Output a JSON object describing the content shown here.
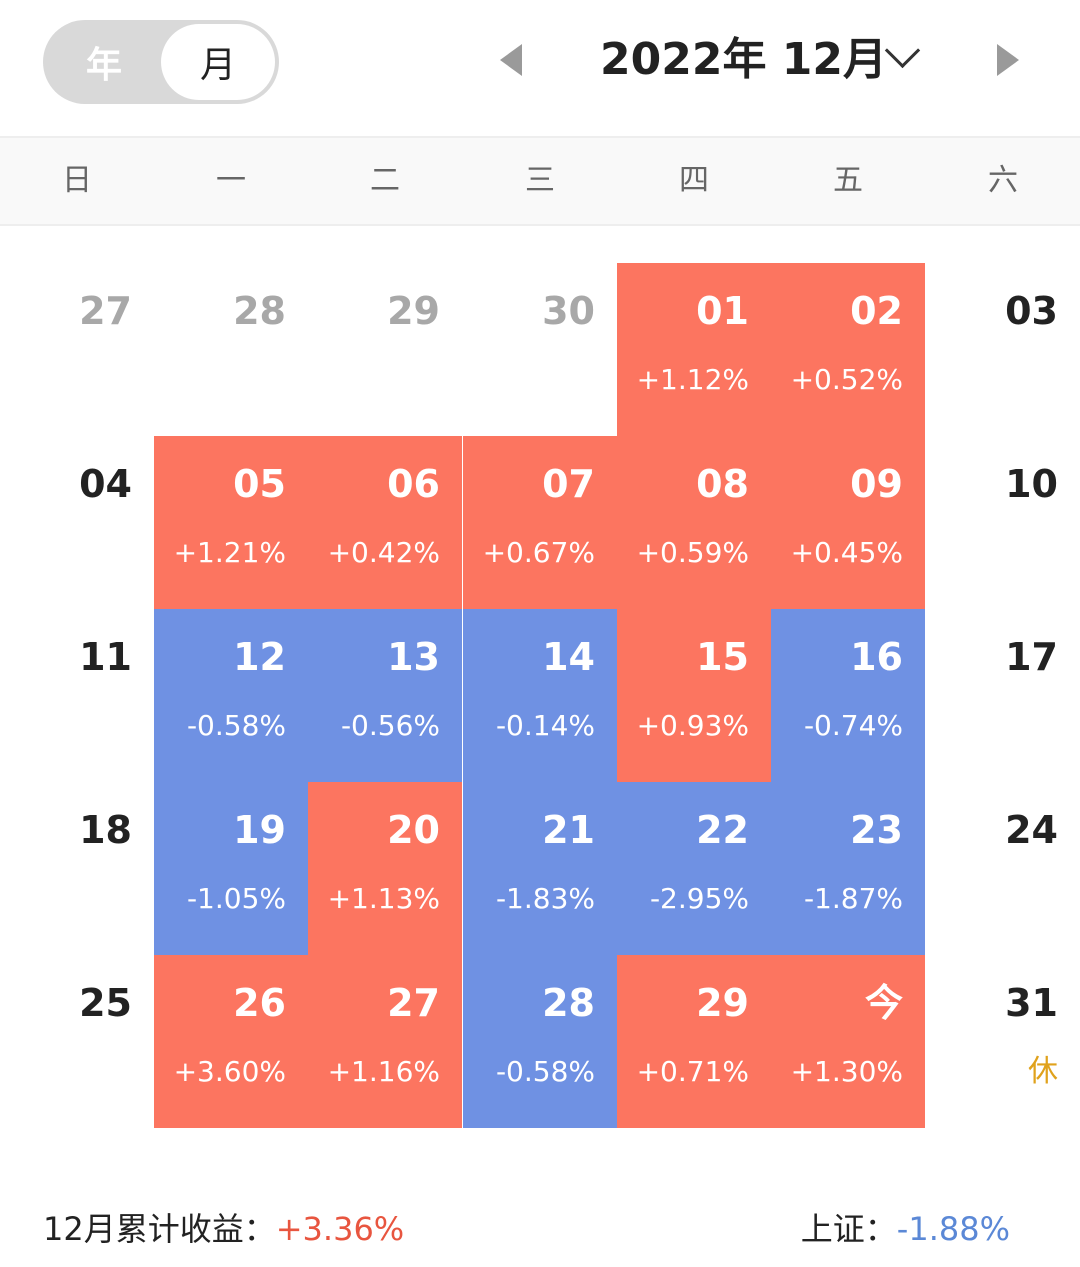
{
  "header": {
    "toggle": {
      "year_label": "年",
      "month_label": "月",
      "selected": "月"
    },
    "title": "2022年 12月"
  },
  "weekdays": [
    "日",
    "一",
    "二",
    "三",
    "四",
    "五",
    "六"
  ],
  "colors": {
    "up": "#fc7560",
    "down": "#6f91e3",
    "rest": "#e0a21c"
  },
  "weeks": [
    [
      {
        "day": "27",
        "other": true
      },
      {
        "day": "28",
        "other": true
      },
      {
        "day": "29",
        "other": true
      },
      {
        "day": "30",
        "other": true
      },
      {
        "day": "01",
        "pct": "+1.12%",
        "dir": "up"
      },
      {
        "day": "02",
        "pct": "+0.52%",
        "dir": "up"
      },
      {
        "day": "03"
      }
    ],
    [
      {
        "day": "04"
      },
      {
        "day": "05",
        "pct": "+1.21%",
        "dir": "up"
      },
      {
        "day": "06",
        "pct": "+0.42%",
        "dir": "up"
      },
      {
        "day": "07",
        "pct": "+0.67%",
        "dir": "up"
      },
      {
        "day": "08",
        "pct": "+0.59%",
        "dir": "up"
      },
      {
        "day": "09",
        "pct": "+0.45%",
        "dir": "up"
      },
      {
        "day": "10"
      }
    ],
    [
      {
        "day": "11"
      },
      {
        "day": "12",
        "pct": "-0.58%",
        "dir": "down"
      },
      {
        "day": "13",
        "pct": "-0.56%",
        "dir": "down"
      },
      {
        "day": "14",
        "pct": "-0.14%",
        "dir": "down"
      },
      {
        "day": "15",
        "pct": "+0.93%",
        "dir": "up"
      },
      {
        "day": "16",
        "pct": "-0.74%",
        "dir": "down"
      },
      {
        "day": "17"
      }
    ],
    [
      {
        "day": "18"
      },
      {
        "day": "19",
        "pct": "-1.05%",
        "dir": "down"
      },
      {
        "day": "20",
        "pct": "+1.13%",
        "dir": "up"
      },
      {
        "day": "21",
        "pct": "-1.83%",
        "dir": "down"
      },
      {
        "day": "22",
        "pct": "-2.95%",
        "dir": "down"
      },
      {
        "day": "23",
        "pct": "-1.87%",
        "dir": "down"
      },
      {
        "day": "24"
      }
    ],
    [
      {
        "day": "25"
      },
      {
        "day": "26",
        "pct": "+3.60%",
        "dir": "up"
      },
      {
        "day": "27",
        "pct": "+1.16%",
        "dir": "up"
      },
      {
        "day": "28",
        "pct": "-0.58%",
        "dir": "down"
      },
      {
        "day": "29",
        "pct": "+0.71%",
        "dir": "up"
      },
      {
        "day": "今",
        "pct": "+1.30%",
        "dir": "up"
      },
      {
        "day": "31",
        "note": "休"
      }
    ]
  ],
  "footer": {
    "cumulative_label": "12月累计收益：",
    "cumulative_value": "+3.36%",
    "index_label": "上证：",
    "index_value": "-1.88%"
  }
}
